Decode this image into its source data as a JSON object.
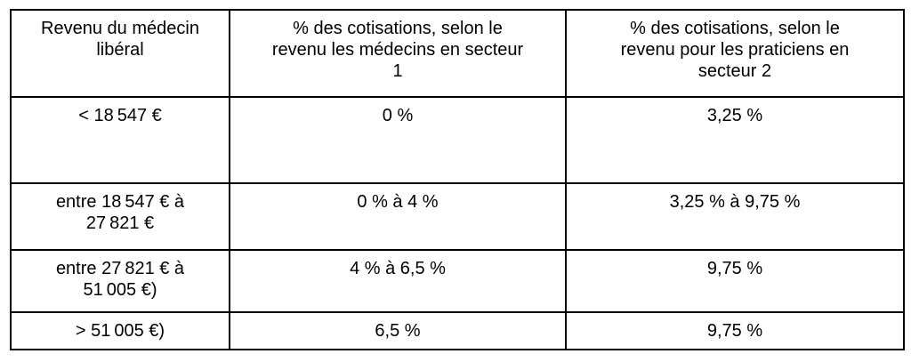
{
  "table": {
    "headers": [
      "Revenu du médecin\nlibéral",
      "% des cotisations, selon le\nrevenu les médecins en secteur\n1",
      "% des cotisations, selon le\nrevenu pour les praticiens en\nsecteur 2"
    ],
    "rows": [
      [
        "< 18 547 €",
        "0 %",
        "3,25 %"
      ],
      [
        "entre 18 547 € à\n27 821 €",
        "0 % à 4 %",
        "3,25 % à 9,75 %"
      ],
      [
        "entre 27 821 € à\n51 005 €)",
        "4 % à 6,5 %",
        "9,75 %"
      ],
      [
        "> 51 005 €)",
        "6,5 %",
        "9,75 %"
      ]
    ],
    "styles": {
      "border_color": "#000000",
      "text_color": "#000000",
      "background_color": "#ffffff"
    }
  }
}
